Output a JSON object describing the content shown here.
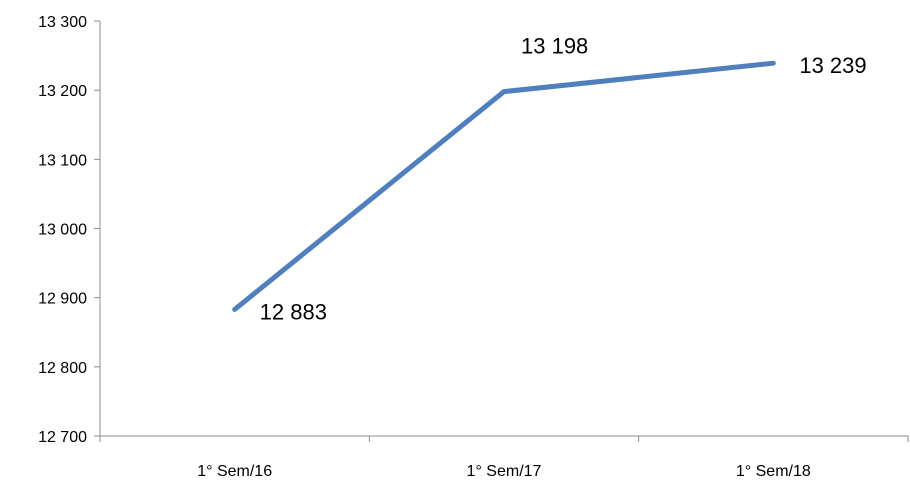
{
  "chart_data": {
    "type": "line",
    "categories": [
      "1° Sem/16",
      "1° Sem/17",
      "1° Sem/18"
    ],
    "series": [
      {
        "values": [
          12883,
          13198,
          13239
        ]
      }
    ],
    "data_labels": [
      "12 883",
      "13 198",
      "13 239"
    ],
    "ylim": [
      12700,
      13300
    ],
    "yticks": [
      12700,
      12800,
      12900,
      13000,
      13100,
      13200,
      13300
    ],
    "ytick_labels": [
      "12 700",
      "12 800",
      "12 900",
      "13 000",
      "13 100",
      "13 200",
      "13 300"
    ],
    "grid": false,
    "legend": "none"
  },
  "colors": {
    "series_line": "#4f7fbc",
    "axis": "#8c8c8c",
    "text": "#000000"
  }
}
